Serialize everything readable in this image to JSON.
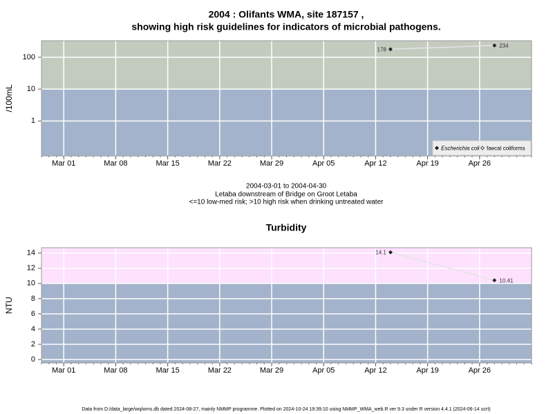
{
  "header": {
    "title": [
      "2004 : Olifants WMA, site 187157 ,",
      "showing high risk guidelines for indicators of microbial pathogens."
    ]
  },
  "caption": [
    "2004-03-01 to 2004-04-30",
    "Letaba downstream of Bridge on Groot Letaba",
    "<=10 low-med risk; >10 high risk when drinking untreated water"
  ],
  "footer": "Data from D:/data_large/wq/wms.db dated 2024-08-27, mainly NMMP programme. Plotted on 2024-10-24 19:39:10 using NMMP_WMA_web.R ver 9.3 under R version 4.4.1 (2024-06-14 ucrt)",
  "chart_data": [
    {
      "type": "line",
      "y_label": "/100mL",
      "log_scale": true,
      "grid": true,
      "legend_corner": "bottom-right",
      "x": [
        "Apr 14",
        "Apr 28"
      ],
      "xlim": [
        "Feb 27",
        "May 03"
      ],
      "xticks": [
        "Mar 01",
        "Mar 08",
        "Mar 15",
        "Mar 22",
        "Mar 29",
        "Apr 05",
        "Apr 12",
        "Apr 19",
        "Apr 26"
      ],
      "ylim": [
        0.08,
        330
      ],
      "yticks": [
        1,
        10,
        100
      ],
      "bands": [
        {
          "to": 10,
          "color": "#a3b3cb"
        },
        {
          "from": 10,
          "color": "#c3cbbf"
        }
      ],
      "line_color": "#e4e4e4",
      "series": [
        {
          "name": "Escherichia coli",
          "color": "#222222",
          "values": [
            178,
            234
          ]
        },
        {
          "name": "faecal coliforms",
          "color": "#222222",
          "values": [
            null,
            null
          ]
        }
      ]
    },
    {
      "type": "line",
      "title": "Turbidity",
      "y_label": "NTU",
      "grid": true,
      "x": [
        "Apr 14",
        "Apr 28"
      ],
      "xlim": [
        "Feb 27",
        "May 03"
      ],
      "xticks": [
        "Mar 01",
        "Mar 08",
        "Mar 15",
        "Mar 22",
        "Mar 29",
        "Apr 05",
        "Apr 12",
        "Apr 19",
        "Apr 26"
      ],
      "ylim": [
        -0.45,
        14.7
      ],
      "yticks": [
        0,
        2,
        4,
        6,
        8,
        10,
        12,
        14
      ],
      "bands": [
        {
          "to": 10,
          "color": "#a3b3cb"
        },
        {
          "from": 10,
          "color": "#fde1fd"
        }
      ],
      "line_color": "#e4e4e4",
      "series": [
        {
          "name": "Turbidity",
          "color": "#222222",
          "values": [
            14.1,
            10.41
          ]
        }
      ]
    }
  ]
}
